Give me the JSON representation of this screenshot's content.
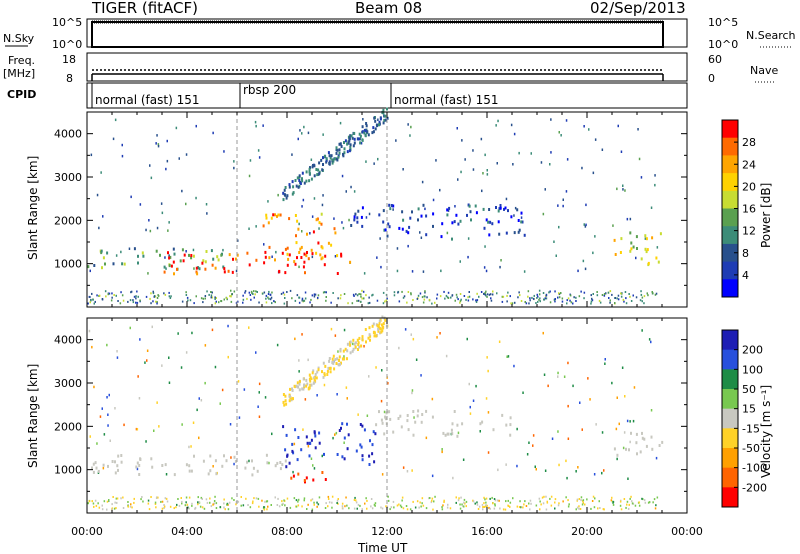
{
  "header": {
    "radar": "TIGER (fitACF)",
    "beam": "Beam 08",
    "date": "02/Sep/2013"
  },
  "panels": {
    "nsky": {
      "label": "N.Sky",
      "tick_top": "10^5",
      "tick_bottom": "10^0",
      "right_tick_top": "10^5",
      "right_tick_bottom": "10^0",
      "right_label": "N.Search"
    },
    "freq": {
      "label": "Freq.",
      "unit": "[MHz]",
      "tick_top": "18",
      "tick_bottom": "8",
      "right_tick_top": "60",
      "right_tick_bottom": "0",
      "right_label": "Nave"
    },
    "cpid": {
      "label": "CPID",
      "modes": [
        {
          "name": "normal (fast) 151",
          "start": "00:00",
          "end": "06:00"
        },
        {
          "name": "rbsp 200",
          "start": "06:00",
          "end": "12:00"
        },
        {
          "name": "normal (fast) 151",
          "start": "12:00",
          "end": "22:50"
        }
      ]
    }
  },
  "colorbars": {
    "power": {
      "label": "Power [dB]",
      "ticks": [
        "28",
        "24",
        "20",
        "16",
        "12",
        "8",
        "4"
      ],
      "colors": [
        "#ff0000",
        "#ff6a00",
        "#ffa500",
        "#ffd200",
        "#c8dc32",
        "#5aa050",
        "#3c8c78",
        "#28508c",
        "#1e3cb4",
        "#0000ff"
      ]
    },
    "velocity": {
      "label": "Velocity [m s⁻¹]",
      "ticks": [
        "200",
        "100",
        "50",
        "15",
        "-15",
        "-50",
        "-100",
        "-200"
      ],
      "colors": [
        "#1e1eb4",
        "#2850dc",
        "#1e8c46",
        "#78c850",
        "#c8c8c0",
        "#ffd228",
        "#ffa000",
        "#ff6400",
        "#ff0000"
      ]
    }
  },
  "chart_data": [
    {
      "type": "heatmap",
      "title": "Power",
      "ylabel": "Slant Range [km]",
      "xlabel": "Time UT",
      "xlim": [
        "00:00",
        "24:00"
      ],
      "ylim": [
        0,
        4500
      ],
      "y_ticks": [
        1000,
        2000,
        3000,
        4000
      ],
      "x_ticks": [
        "00:00",
        "04:00",
        "08:00",
        "12:00",
        "16:00",
        "20:00",
        "00:00"
      ],
      "features": [
        {
          "t_start": 0.0,
          "t_end": 6.0,
          "r_start": 900,
          "r_end": 1400,
          "value_db": 14
        },
        {
          "t_start": 3.0,
          "t_end": 10.5,
          "r_start": 800,
          "r_end": 1300,
          "value_db": 28
        },
        {
          "t_start": 7.0,
          "t_end": 10.0,
          "r_start": 1100,
          "r_end": 2200,
          "value_db": 24
        },
        {
          "t_start": 10.0,
          "t_end": 17.5,
          "r_start": 1600,
          "r_end": 2400,
          "value_db": 6
        },
        {
          "t_start": 21.0,
          "t_end": 23.0,
          "r_start": 1000,
          "r_end": 1800,
          "value_db": 18
        }
      ]
    },
    {
      "type": "heatmap",
      "title": "Velocity",
      "ylabel": "Slant Range [km]",
      "xlabel": "Time UT",
      "xlim": [
        "00:00",
        "24:00"
      ],
      "ylim": [
        0,
        4500
      ],
      "y_ticks": [
        1000,
        2000,
        3000,
        4000
      ],
      "x_ticks": [
        "00:00",
        "04:00",
        "08:00",
        "12:00",
        "16:00",
        "20:00",
        "00:00"
      ],
      "features": [
        {
          "t_start": 0.0,
          "t_end": 8.0,
          "r_start": 900,
          "r_end": 1400,
          "value_ms": 0
        },
        {
          "t_start": 7.8,
          "t_end": 11.5,
          "r_start": 1100,
          "r_end": 2100,
          "value_ms": 200
        },
        {
          "t_start": 8.0,
          "t_end": 10.0,
          "r_start": 700,
          "r_end": 1000,
          "value_ms": -200
        },
        {
          "t_start": 11.5,
          "t_end": 17.0,
          "r_start": 1800,
          "r_end": 2400,
          "value_ms": 0
        },
        {
          "t_start": 21.0,
          "t_end": 23.0,
          "r_start": 1300,
          "r_end": 1900,
          "value_ms": 0
        }
      ]
    }
  ],
  "axes": {
    "ylabel": "Slant Range [km]",
    "xlabel": "Time UT",
    "y_ticks": [
      "1000",
      "2000",
      "3000",
      "4000"
    ],
    "x_ticks": [
      "00:00",
      "04:00",
      "08:00",
      "12:00",
      "16:00",
      "20:00",
      "00:00"
    ]
  }
}
